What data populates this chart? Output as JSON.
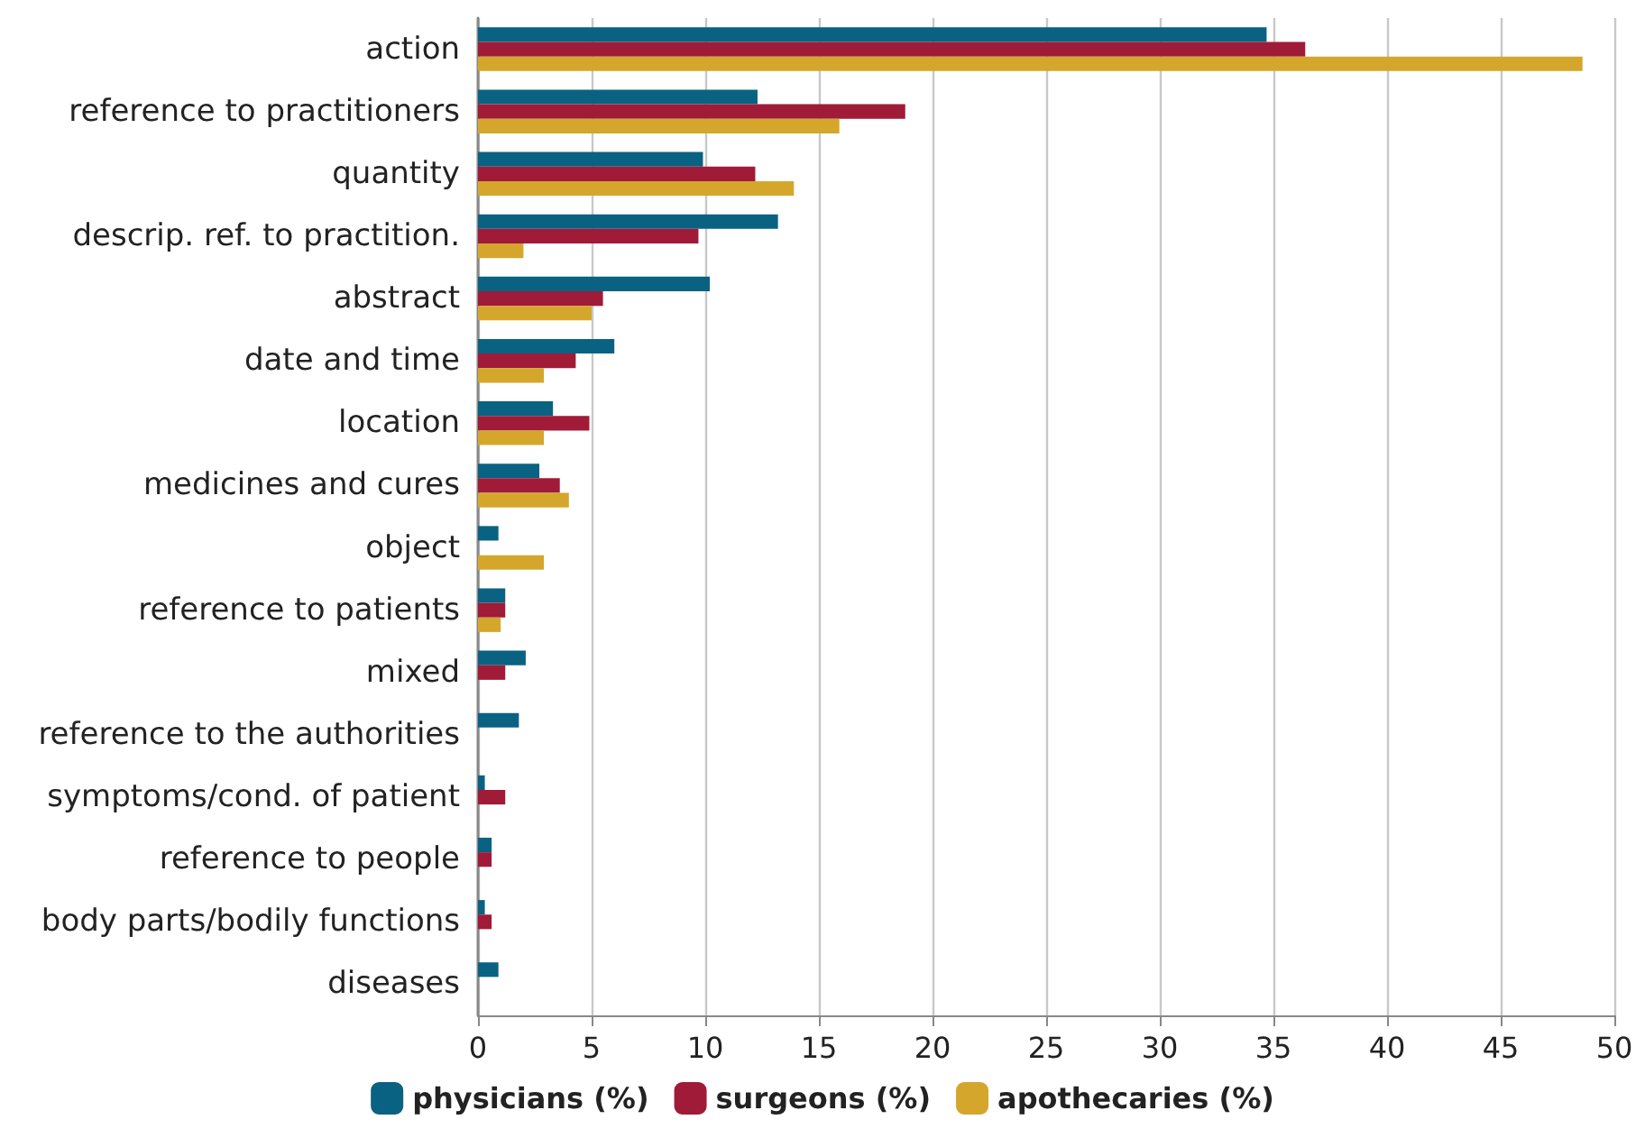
{
  "chart_data": {
    "type": "bar",
    "orientation": "horizontal",
    "categories": [
      "action",
      "reference to practitioners",
      "quantity",
      "descrip. ref. to practition.",
      "abstract",
      "date and time",
      "location",
      "medicines and cures",
      "object",
      "reference to patients",
      "mixed",
      "reference to the authorities",
      "symptoms/cond. of patient",
      "reference to people",
      "body parts/bodily functions",
      "diseases"
    ],
    "series": [
      {
        "name": "physicians (%)",
        "color": "#0a6282",
        "values": [
          34.7,
          12.3,
          9.9,
          13.2,
          10.2,
          6.0,
          3.3,
          2.7,
          0.9,
          1.2,
          2.1,
          1.8,
          0.3,
          0.6,
          0.3,
          0.9
        ]
      },
      {
        "name": "surgeons (%)",
        "color": "#a01b38",
        "values": [
          36.4,
          18.8,
          12.2,
          9.7,
          5.5,
          4.3,
          4.9,
          3.6,
          null,
          1.2,
          1.2,
          null,
          1.2,
          0.6,
          0.6,
          null
        ]
      },
      {
        "name": "apothecaries (%)",
        "color": "#d4a72c",
        "values": [
          48.6,
          15.9,
          13.9,
          2.0,
          5.0,
          2.9,
          2.9,
          4.0,
          2.9,
          1.0,
          null,
          null,
          null,
          null,
          null,
          null
        ]
      }
    ],
    "xlim": [
      0,
      50
    ],
    "xticks": [
      0,
      5,
      10,
      15,
      20,
      25,
      30,
      35,
      40,
      45,
      50
    ],
    "grid": "x",
    "legend": "bottom"
  }
}
